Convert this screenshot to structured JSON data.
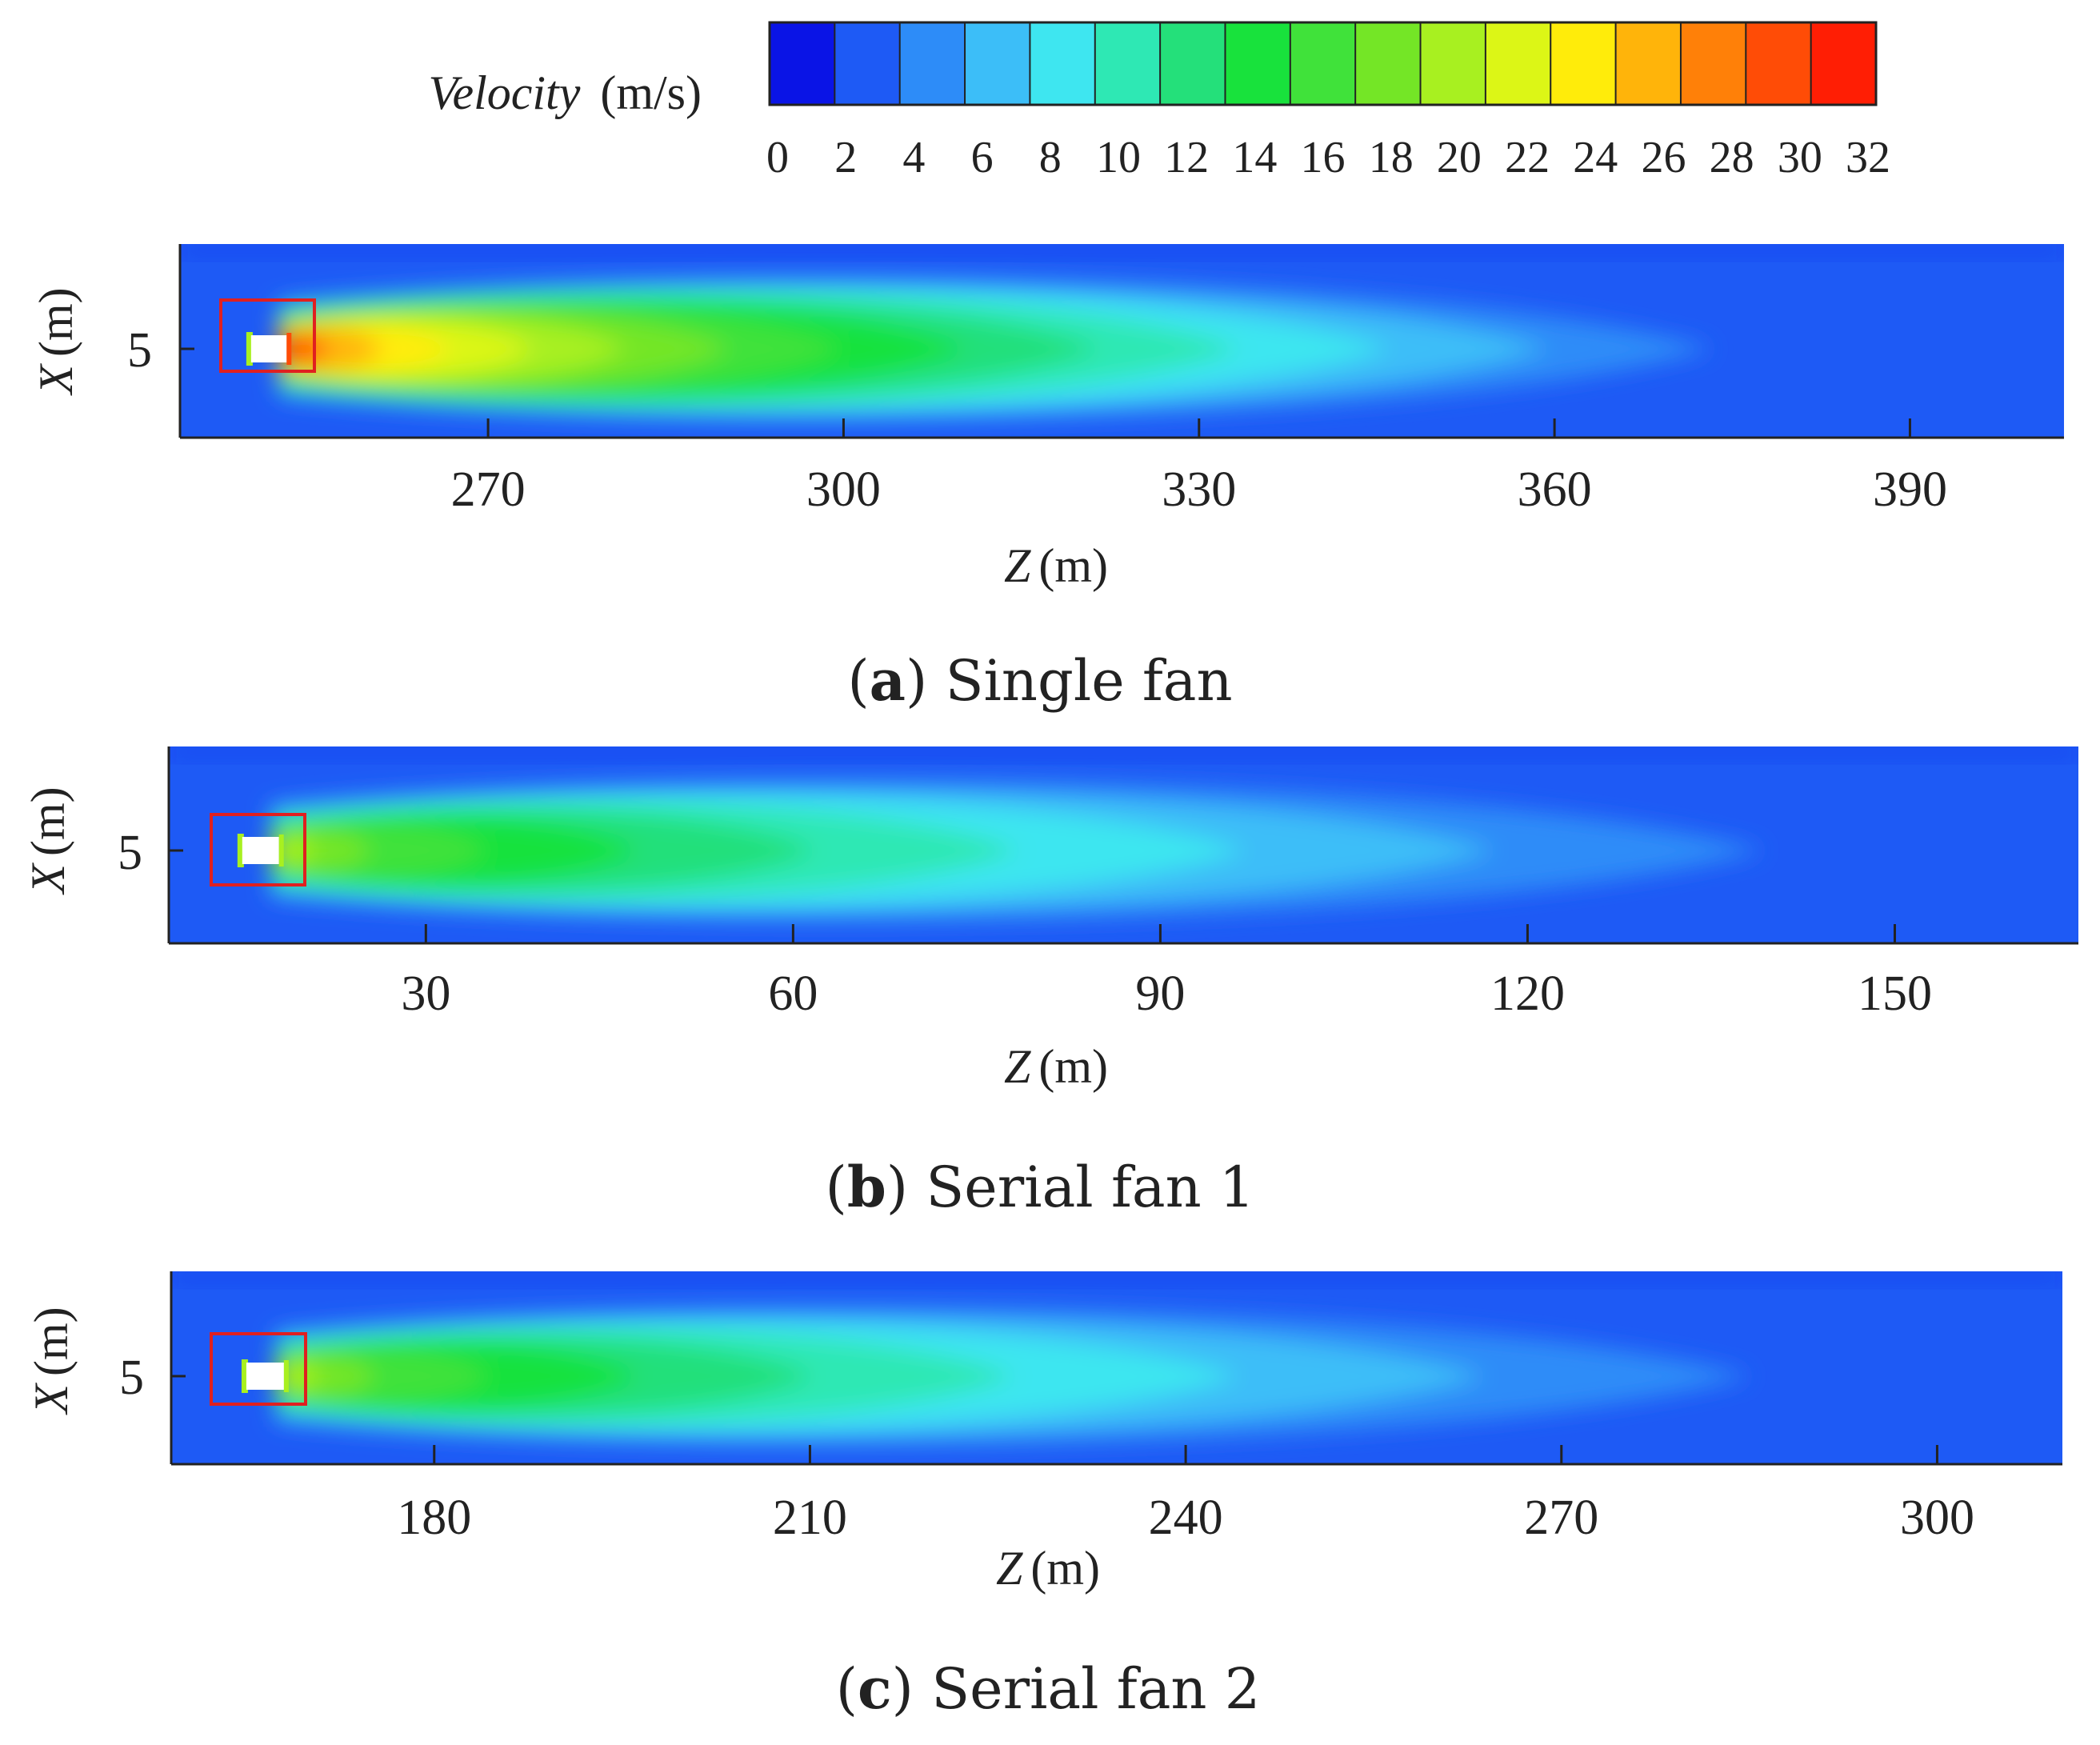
{
  "legend": {
    "title_italic": "Velocity",
    "title_unit": "(m/s)",
    "ticks": [
      "0",
      "2",
      "4",
      "6",
      "8",
      "10",
      "12",
      "14",
      "16",
      "18",
      "20",
      "22",
      "24",
      "26",
      "28",
      "30",
      "32"
    ],
    "colors": [
      "#0a14e6",
      "#1e5af5",
      "#2d8cf8",
      "#3cbef8",
      "#3ee6f0",
      "#2ee8b4",
      "#24e07a",
      "#18e23c",
      "#40e23a",
      "#74e626",
      "#a8f020",
      "#dcf616",
      "#ffec0a",
      "#ffb40a",
      "#ff8008",
      "#ff4c06",
      "#ff1e04"
    ]
  },
  "chart_data": [
    {
      "type": "heatmap",
      "panel_letter": "a",
      "caption": "Single fan",
      "xlabel_italic": "Z",
      "xlabel_unit": "(m)",
      "ylabel_italic": "X",
      "ylabel_unit": "(m)",
      "x_ticks": [
        270,
        300,
        330,
        360,
        390
      ],
      "y_ticks": [
        5
      ],
      "xlim": [
        244,
        403
      ],
      "fan_z": [
        250,
        253
      ],
      "jet_peak_velocity": 30,
      "jet_decay_length": 135
    },
    {
      "type": "heatmap",
      "panel_letter": "b",
      "caption": "Serial fan 1",
      "xlabel_italic": "Z",
      "xlabel_unit": "(m)",
      "ylabel_italic": "X",
      "ylabel_unit": "(m)",
      "x_ticks": [
        30,
        60,
        90,
        120,
        150
      ],
      "y_ticks": [
        5
      ],
      "xlim": [
        9,
        165
      ],
      "fan_z": [
        15,
        18
      ],
      "jet_peak_velocity": 20,
      "jet_decay_length": 145
    },
    {
      "type": "heatmap",
      "panel_letter": "c",
      "caption": "Serial fan 2",
      "xlabel_italic": "Z",
      "xlabel_unit": "(m)",
      "ylabel_italic": "X",
      "ylabel_unit": "(m)",
      "x_ticks": [
        180,
        210,
        240,
        270,
        300
      ],
      "y_ticks": [
        5
      ],
      "xlim": [
        159,
        310
      ],
      "fan_z": [
        165,
        168
      ],
      "jet_peak_velocity": 20,
      "jet_decay_length": 140
    }
  ]
}
